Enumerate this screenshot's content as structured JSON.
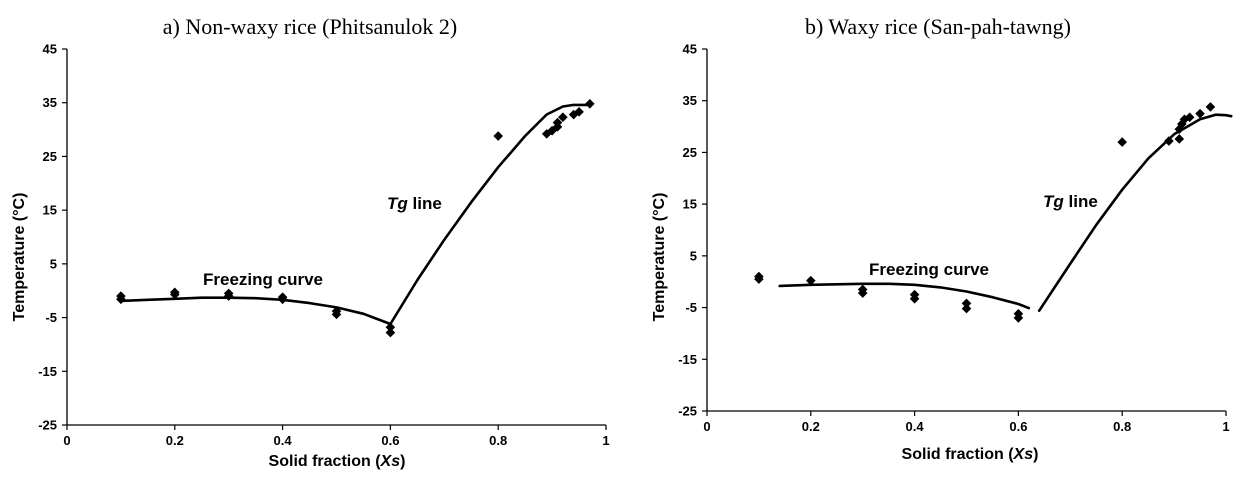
{
  "chart_data": [
    {
      "type": "scatter",
      "title": "a) Non-waxy rice (Phitsanulok 2)",
      "xlabel": {
        "main": "Solid fraction (",
        "var": "Xs",
        "close": ")"
      },
      "ylabel": "Temperature (°C)",
      "xlim": [
        0,
        1
      ],
      "ylim": [
        -25,
        45
      ],
      "xticks": [
        "0",
        "0.2",
        "0.4",
        "0.6",
        "0.8",
        "1"
      ],
      "xtick_values": [
        0,
        0.2,
        0.4,
        0.6,
        0.8,
        1
      ],
      "yticks": [
        "45",
        "35",
        "25",
        "15",
        "5",
        "-5",
        "-15",
        "-25"
      ],
      "ytick_values": [
        45,
        35,
        25,
        15,
        5,
        -5,
        -15,
        -25
      ],
      "grid": false,
      "annotations": {
        "freezing": "Freezing curve",
        "tg_var": "Tg",
        "tg_rest": " line"
      },
      "points": [
        [
          0.1,
          -1.0
        ],
        [
          0.1,
          -1.6
        ],
        [
          0.2,
          -0.3
        ],
        [
          0.2,
          -0.7
        ],
        [
          0.3,
          -0.5
        ],
        [
          0.3,
          -1.0
        ],
        [
          0.4,
          -1.2
        ],
        [
          0.4,
          -1.6
        ],
        [
          0.5,
          -3.8
        ],
        [
          0.5,
          -4.4
        ],
        [
          0.6,
          -6.8
        ],
        [
          0.6,
          -7.8
        ],
        [
          0.8,
          28.8
        ],
        [
          0.89,
          29.2
        ],
        [
          0.9,
          29.8
        ],
        [
          0.91,
          30.5
        ],
        [
          0.91,
          31.3
        ],
        [
          0.92,
          32.3
        ],
        [
          0.94,
          32.8
        ],
        [
          0.95,
          33.3
        ],
        [
          0.97,
          34.8
        ]
      ],
      "curves": {
        "freezing": [
          [
            0.1,
            -1.9
          ],
          [
            0.15,
            -1.7
          ],
          [
            0.2,
            -1.5
          ],
          [
            0.25,
            -1.3
          ],
          [
            0.3,
            -1.3
          ],
          [
            0.35,
            -1.4
          ],
          [
            0.4,
            -1.7
          ],
          [
            0.45,
            -2.3
          ],
          [
            0.5,
            -3.1
          ],
          [
            0.55,
            -4.3
          ],
          [
            0.6,
            -6.2
          ]
        ],
        "tg": [
          [
            0.6,
            -6.2
          ],
          [
            0.65,
            2.0
          ],
          [
            0.7,
            9.5
          ],
          [
            0.75,
            16.5
          ],
          [
            0.8,
            23.0
          ],
          [
            0.85,
            28.8
          ],
          [
            0.89,
            32.8
          ],
          [
            0.92,
            34.3
          ],
          [
            0.94,
            34.6
          ],
          [
            0.97,
            34.6
          ]
        ]
      }
    },
    {
      "type": "scatter",
      "title": "b) Waxy rice (San-pah-tawng)",
      "xlabel": {
        "main": "Solid fraction (",
        "var": "Xs",
        "close": ")"
      },
      "ylabel": "Temperature (°C)",
      "xlim": [
        0,
        1
      ],
      "ylim": [
        -25,
        45
      ],
      "xticks": [
        "0",
        "0.2",
        "0.4",
        "0.6",
        "0.8",
        "1"
      ],
      "xtick_values": [
        0,
        0.2,
        0.4,
        0.6,
        0.8,
        1
      ],
      "yticks": [
        "45",
        "35",
        "25",
        "15",
        "5",
        "-5",
        "-15",
        "-25"
      ],
      "ytick_values": [
        45,
        35,
        25,
        15,
        5,
        -5,
        -15,
        -25
      ],
      "grid": false,
      "annotations": {
        "freezing": "Freezing curve",
        "tg_var": "Tg",
        "tg_rest": " line"
      },
      "points": [
        [
          0.1,
          1.0
        ],
        [
          0.1,
          0.5
        ],
        [
          0.2,
          0.2
        ],
        [
          0.3,
          -1.5
        ],
        [
          0.3,
          -2.2
        ],
        [
          0.4,
          -2.5
        ],
        [
          0.4,
          -3.3
        ],
        [
          0.5,
          -4.2
        ],
        [
          0.5,
          -5.2
        ],
        [
          0.6,
          -6.2
        ],
        [
          0.6,
          -7.0
        ],
        [
          0.8,
          27.0
        ],
        [
          0.89,
          27.2
        ],
        [
          0.91,
          27.6
        ],
        [
          0.91,
          29.5
        ],
        [
          0.915,
          30.5
        ],
        [
          0.92,
          31.4
        ],
        [
          0.93,
          31.8
        ],
        [
          0.95,
          32.5
        ],
        [
          0.97,
          33.8
        ]
      ],
      "curves": {
        "freezing": [
          [
            0.14,
            -0.8
          ],
          [
            0.2,
            -0.6
          ],
          [
            0.25,
            -0.5
          ],
          [
            0.3,
            -0.4
          ],
          [
            0.35,
            -0.4
          ],
          [
            0.4,
            -0.6
          ],
          [
            0.45,
            -1.1
          ],
          [
            0.5,
            -1.9
          ],
          [
            0.55,
            -3.0
          ],
          [
            0.6,
            -4.3
          ],
          [
            0.62,
            -5.1
          ]
        ],
        "tg": [
          [
            0.64,
            -5.6
          ],
          [
            0.7,
            3.5
          ],
          [
            0.75,
            11.0
          ],
          [
            0.8,
            17.8
          ],
          [
            0.85,
            23.8
          ],
          [
            0.9,
            28.5
          ],
          [
            0.95,
            31.4
          ],
          [
            0.98,
            32.3
          ],
          [
            1.0,
            32.2
          ],
          [
            1.01,
            32.0
          ]
        ]
      }
    }
  ]
}
